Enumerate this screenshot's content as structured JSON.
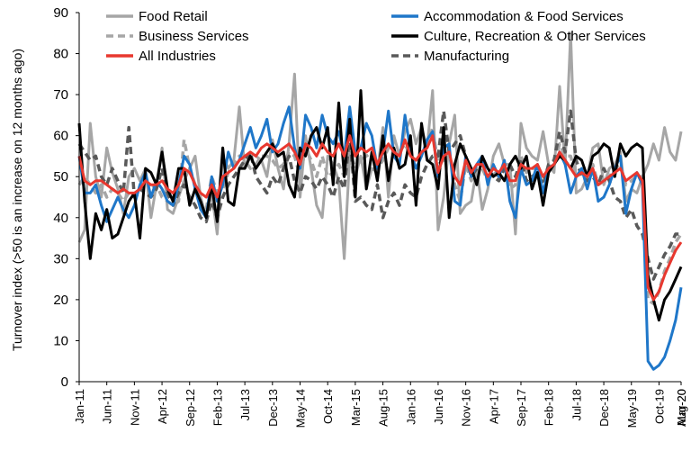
{
  "chart_data": {
    "type": "line",
    "title": "",
    "xlabel": "",
    "ylabel": "Turnover index (>50 is an increase on 12 months ago)",
    "ylim": [
      0,
      90
    ],
    "yticks": [
      0,
      10,
      20,
      30,
      40,
      50,
      60,
      70,
      80,
      90
    ],
    "grid": false,
    "legend_position": "top",
    "x_start": "Jan-11",
    "x_end": "Aug-20",
    "x_tick_labels": [
      "Jan-11",
      "Jun-11",
      "Nov-11",
      "Apr-12",
      "Sep-12",
      "Feb-13",
      "Jul-13",
      "Dec-13",
      "May-14",
      "Oct-14",
      "Mar-15",
      "Aug-15",
      "Jan-16",
      "Jun-16",
      "Nov-16",
      "Apr-17",
      "Sep-17",
      "Feb-18",
      "Jul-18",
      "Dec-18",
      "May-19",
      "Oct-19",
      "Mar-20",
      "Aug-20"
    ],
    "series": [
      {
        "name": "Food Retail",
        "color": "#a6a6a6",
        "dash": "solid",
        "values": [
          34,
          37,
          63,
          50,
          45,
          57,
          51,
          47,
          41,
          50,
          52,
          49,
          52,
          40,
          48,
          57,
          42,
          41,
          45,
          49,
          52,
          55,
          45,
          40,
          46,
          36,
          55,
          52,
          54,
          67,
          52,
          56,
          55,
          54,
          50,
          59,
          52,
          47,
          58,
          75,
          45,
          60,
          52,
          43,
          40,
          55,
          53,
          49,
          30,
          55,
          50,
          55,
          47,
          52,
          51,
          62,
          45,
          60,
          55,
          61,
          64,
          58,
          62,
          57,
          71,
          37,
          45,
          58,
          65,
          41,
          43,
          44,
          52,
          42,
          47,
          55,
          58,
          53,
          53,
          36,
          63,
          57,
          55,
          54,
          61,
          53,
          51,
          72,
          53,
          85,
          46,
          47,
          50,
          57,
          58,
          48,
          52,
          53,
          56,
          44,
          47,
          46,
          50,
          53,
          58,
          54,
          62,
          56,
          54,
          61
        ]
      },
      {
        "name": "Accommodation & Food Services",
        "color": "#1f77c9",
        "dash": "solid",
        "values": [
          55,
          46,
          46,
          48,
          43,
          39,
          42,
          45,
          42,
          40,
          43,
          48,
          51,
          45,
          49,
          47,
          44,
          43,
          48,
          55,
          53,
          47,
          42,
          40,
          50,
          44,
          48,
          56,
          52,
          54,
          58,
          62,
          57,
          60,
          64,
          56,
          58,
          63,
          67,
          57,
          52,
          65,
          62,
          57,
          65,
          60,
          58,
          61,
          55,
          67,
          56,
          57,
          63,
          60,
          52,
          56,
          66,
          55,
          53,
          65,
          56,
          52,
          55,
          59,
          61,
          50,
          57,
          58,
          44,
          43,
          55,
          50,
          53,
          55,
          48,
          53,
          50,
          54,
          44,
          40,
          52,
          48,
          49,
          53,
          46,
          52,
          53,
          56,
          53,
          46,
          50,
          52,
          47,
          52,
          44,
          45,
          48,
          52,
          55,
          41,
          47,
          51,
          48,
          5,
          3,
          4,
          6,
          10,
          15,
          23
        ]
      },
      {
        "name": "Business Services",
        "color": "#a6a6a6",
        "dash": "dashed",
        "values": [
          48,
          50,
          48,
          46,
          48,
          45,
          47,
          46,
          44,
          46,
          45,
          46,
          49,
          47,
          48,
          45,
          44,
          43,
          44,
          59,
          52,
          48,
          43,
          42,
          50,
          46,
          47,
          51,
          53,
          55,
          54,
          52,
          53,
          55,
          55,
          54,
          52,
          53,
          56,
          55,
          50,
          57,
          54,
          50,
          55,
          50,
          51,
          53,
          50,
          56,
          52,
          54,
          55,
          56,
          52,
          54,
          57,
          55,
          56,
          58,
          55,
          54,
          56,
          57,
          62,
          53,
          54,
          56,
          48,
          44,
          53,
          49,
          52,
          52,
          49,
          51,
          50,
          53,
          47,
          48,
          55,
          51,
          52,
          52,
          50,
          52,
          53,
          58,
          55,
          55,
          50,
          51,
          50,
          53,
          48,
          49,
          50,
          52,
          53,
          48,
          49,
          50,
          50,
          20,
          19,
          22,
          27,
          30,
          34,
          36
        ]
      },
      {
        "name": "Culture, Recreation & Other Services",
        "color": "#000000",
        "dash": "solid",
        "values": [
          63,
          44,
          30,
          41,
          37,
          42,
          35,
          36,
          40,
          44,
          46,
          35,
          52,
          51,
          48,
          56,
          47,
          44,
          52,
          52,
          43,
          47,
          44,
          40,
          48,
          39,
          57,
          44,
          43,
          52,
          52,
          55,
          52,
          54,
          56,
          58,
          55,
          56,
          48,
          45,
          57,
          55,
          60,
          62,
          57,
          62,
          48,
          68,
          50,
          64,
          45,
          71,
          47,
          56,
          49,
          60,
          49,
          57,
          52,
          53,
          60,
          43,
          63,
          54,
          53,
          47,
          62,
          40,
          53,
          58,
          55,
          52,
          48,
          55,
          52,
          50,
          51,
          49,
          53,
          55,
          52,
          55,
          47,
          51,
          43,
          51,
          53,
          55,
          54,
          52,
          55,
          54,
          50,
          55,
          56,
          58,
          57,
          50,
          58,
          55,
          57,
          58,
          57,
          26,
          20,
          15,
          20,
          22,
          25,
          28
        ]
      },
      {
        "name": "All Industries",
        "color": "#e8382f",
        "dash": "solid",
        "values": [
          55,
          49,
          48,
          49,
          49,
          48,
          47,
          46,
          47,
          46,
          46,
          47,
          49,
          48,
          48,
          49,
          47,
          46,
          48,
          52,
          51,
          48,
          46,
          45,
          48,
          45,
          50,
          51,
          52,
          54,
          55,
          56,
          55,
          57,
          58,
          57,
          56,
          57,
          58,
          56,
          53,
          58,
          57,
          55,
          58,
          56,
          55,
          58,
          55,
          60,
          55,
          57,
          56,
          57,
          53,
          56,
          58,
          56,
          55,
          59,
          55,
          54,
          56,
          57,
          60,
          51,
          55,
          56,
          50,
          48,
          54,
          51,
          53,
          53,
          50,
          52,
          51,
          53,
          49,
          49,
          53,
          52,
          52,
          53,
          50,
          52,
          53,
          56,
          54,
          52,
          50,
          51,
          50,
          52,
          48,
          49,
          50,
          51,
          52,
          49,
          50,
          51,
          49,
          23,
          20,
          22,
          26,
          29,
          32,
          34
        ]
      },
      {
        "name": "Manufacturing",
        "color": "#595959",
        "dash": "dashed",
        "values": [
          58,
          56,
          54,
          55,
          50,
          48,
          52,
          49,
          46,
          62,
          45,
          47,
          46,
          45,
          47,
          52,
          46,
          43,
          46,
          48,
          45,
          43,
          40,
          39,
          44,
          40,
          45,
          48,
          50,
          52,
          54,
          56,
          50,
          48,
          46,
          50,
          48,
          52,
          55,
          49,
          46,
          50,
          49,
          47,
          50,
          48,
          45,
          50,
          47,
          60,
          44,
          45,
          43,
          42,
          48,
          40,
          44,
          46,
          43,
          48,
          46,
          45,
          50,
          53,
          55,
          55,
          66,
          56,
          58,
          60,
          55,
          50,
          52,
          53,
          52,
          50,
          49,
          52,
          53,
          50,
          54,
          49,
          50,
          51,
          48,
          53,
          54,
          61,
          56,
          66,
          54,
          50,
          49,
          50,
          48,
          52,
          49,
          45,
          44,
          40,
          42,
          38,
          36,
          30,
          25,
          28,
          31,
          33,
          36,
          36
        ]
      }
    ]
  }
}
